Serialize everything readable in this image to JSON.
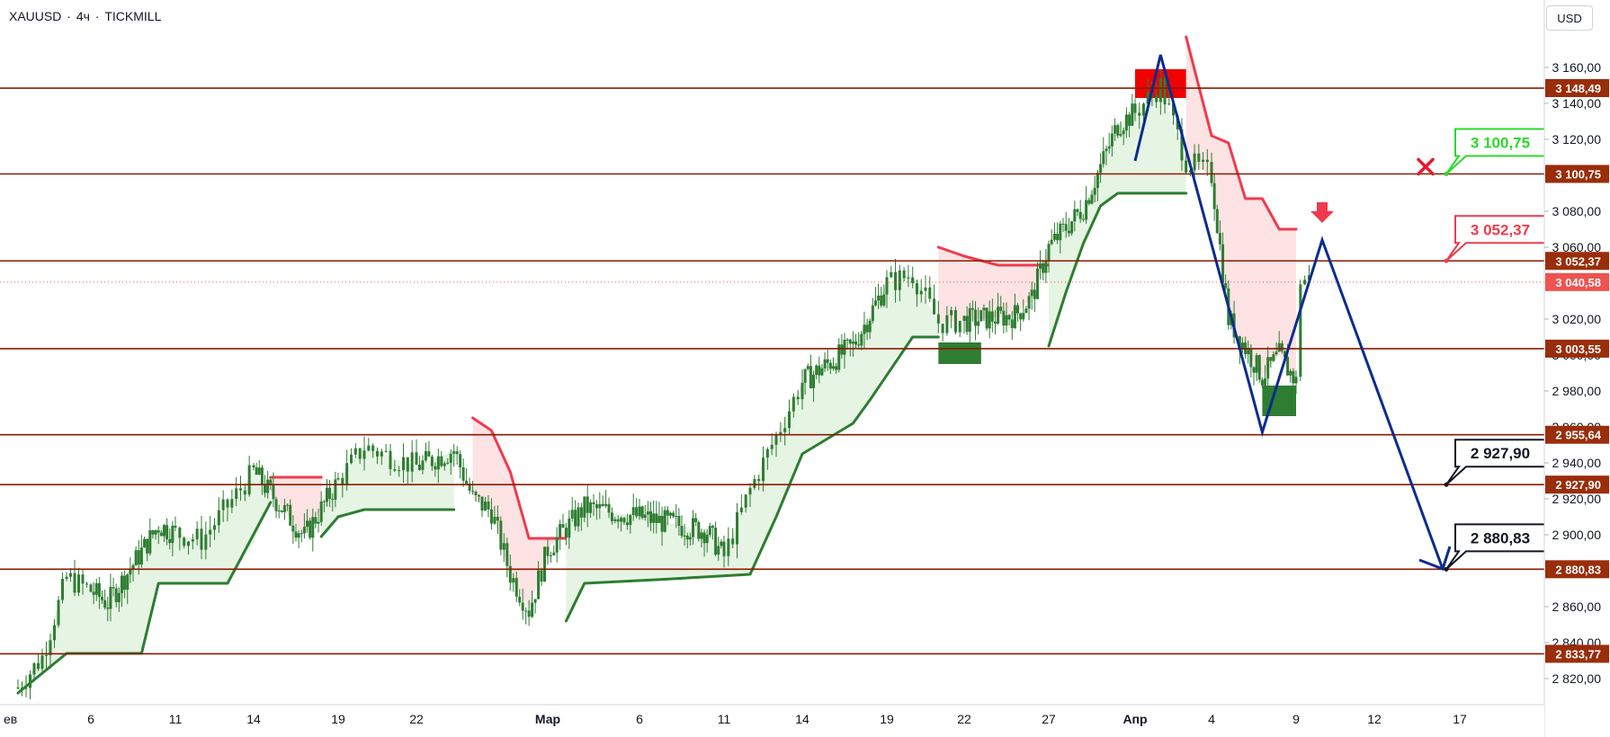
{
  "header": {
    "symbol": "XAUUSD",
    "separator": "·",
    "timeframe": "4ч",
    "broker": "TICKMILL",
    "currency": "USD"
  },
  "colors": {
    "level_line": "#8b1a00",
    "level_label_bg": "#9a2d0a",
    "candle": "#2e7d32",
    "stop_up": "#2e7d32",
    "stop_down": "#ef3b4e",
    "fill_up": "#e3f3e1",
    "fill_down": "#fde0e0",
    "projection": "#0d2c8f",
    "last_price_bg": "#ef5350",
    "callout_green": "#2bd92b",
    "callout_red": "#ef3b4e",
    "callout_black": "#131722",
    "sell_arrow": "#ef3b4e",
    "cross": "#e8182c"
  },
  "chart_data": {
    "type": "candlestick",
    "title": "XAUUSD · 4ч · TICKMILL",
    "x_ticks": [
      "ев",
      "6",
      "11",
      "14",
      "19",
      "22",
      "Мар",
      "6",
      "11",
      "14",
      "19",
      "22",
      "27",
      "Апр",
      "4",
      "9",
      "12",
      "17"
    ],
    "y_ticks": [
      "2 820,00",
      "2 840,00",
      "2 860,00",
      "2 880,00",
      "2 900,00",
      "2 920,00",
      "2 940,00",
      "2 960,00",
      "2 980,00",
      "3 000,00",
      "3 020,00",
      "3 040,00",
      "3 060,00",
      "3 080,00",
      "3 100,00",
      "3 120,00",
      "3 140,00",
      "3 160,00"
    ],
    "ylim": [
      2811,
      3179
    ],
    "horizontal_levels": [
      3148.49,
      3100.75,
      3052.37,
      3003.55,
      2955.64,
      2927.9,
      2880.83,
      2833.77
    ],
    "level_labels": [
      "3 148,49",
      "3 100,75",
      "3 052,37",
      "3 003,55",
      "2 955,64",
      "2 927,90",
      "2 880,83",
      "2 833,77"
    ],
    "last_price": 3040.58,
    "last_price_label": "3 040,58",
    "close_path": [
      [
        "Feb 3",
        2815
      ],
      [
        "Feb 4",
        2832
      ],
      [
        "Feb 5",
        2876
      ],
      [
        "Feb 7",
        2862
      ],
      [
        "Feb 10",
        2905
      ],
      [
        "Feb 12",
        2897
      ],
      [
        "Feb 14",
        2935
      ],
      [
        "Feb 17",
        2899
      ],
      [
        "Feb 19",
        2930
      ],
      [
        "Feb 20",
        2949
      ],
      [
        "Feb 22",
        2938
      ],
      [
        "Feb 24",
        2947
      ],
      [
        "Feb 25",
        2920
      ],
      [
        "Feb 26",
        2913
      ],
      [
        "Feb 27",
        2878
      ],
      [
        "Feb 28",
        2858
      ],
      [
        "Mar 1",
        2892
      ],
      [
        "Mar 3",
        2915
      ],
      [
        "Mar 6",
        2910
      ],
      [
        "Mar 10",
        2902
      ],
      [
        "Mar 11",
        2888
      ],
      [
        "Mar 12",
        2925
      ],
      [
        "Mar 13",
        2955
      ],
      [
        "Mar 14",
        2985
      ],
      [
        "Mar 17",
        3005
      ],
      [
        "Mar 19",
        3040
      ],
      [
        "Mar 20",
        3045
      ],
      [
        "Mar 21",
        3018
      ],
      [
        "Mar 23",
        3020
      ],
      [
        "Mar 25",
        3022
      ],
      [
        "Mar 26",
        3032
      ],
      [
        "Mar 27",
        3060
      ],
      [
        "Mar 29",
        3082
      ],
      [
        "Mar 31",
        3128
      ],
      [
        "Apr 1",
        3135
      ],
      [
        "Apr 2",
        3150
      ],
      [
        "Apr 3",
        3108
      ],
      [
        "Apr 4",
        3100
      ],
      [
        "Apr 5",
        3020
      ],
      [
        "Apr 7",
        2988
      ],
      [
        "Apr 8",
        3000
      ],
      [
        "Apr 9",
        2985
      ],
      [
        "Apr 9",
        3042
      ]
    ],
    "trailing_stop": [
      {
        "direction": "up",
        "points": [
          [
            "Feb 3",
            2812
          ],
          [
            "Feb 5",
            2834
          ],
          [
            "Feb 9",
            2834
          ],
          [
            "Feb 10",
            2873
          ],
          [
            "Feb 13",
            2873
          ],
          [
            "Feb 15",
            2918
          ]
        ]
      },
      {
        "direction": "down",
        "points": [
          [
            "Feb 15",
            2932
          ],
          [
            "Feb 18",
            2932
          ]
        ]
      },
      {
        "direction": "up",
        "points": [
          [
            "Feb 18",
            2899
          ],
          [
            "Feb 19",
            2910
          ],
          [
            "Feb 20",
            2914
          ],
          [
            "Feb 24",
            2914
          ]
        ]
      },
      {
        "direction": "down",
        "points": [
          [
            "Feb 25",
            2965
          ],
          [
            "Feb 26",
            2958
          ],
          [
            "Feb 27",
            2935
          ],
          [
            "Feb 28",
            2898
          ],
          [
            "Mar 2",
            2898
          ]
        ]
      },
      {
        "direction": "up",
        "points": [
          [
            "Mar 2",
            2852
          ],
          [
            "Mar 3",
            2873
          ],
          [
            "Mar 7",
            2875
          ],
          [
            "Mar 12",
            2878
          ],
          [
            "Mar 13",
            2910
          ],
          [
            "Mar 14",
            2945
          ],
          [
            "Mar 17",
            2962
          ],
          [
            "Mar 18",
            2975
          ],
          [
            "Mar 20",
            3010
          ],
          [
            "Mar 21",
            3010
          ]
        ]
      },
      {
        "direction": "down",
        "points": [
          [
            "Mar 21",
            3060
          ],
          [
            "Mar 22",
            3055
          ],
          [
            "Mar 24",
            3050
          ],
          [
            "Mar 27",
            3050
          ]
        ]
      },
      {
        "direction": "up",
        "points": [
          [
            "Mar 27",
            3005
          ],
          [
            "Mar 28",
            3035
          ],
          [
            "Mar 29",
            3062
          ],
          [
            "Mar 30",
            3083
          ],
          [
            "Mar 31",
            3090
          ],
          [
            "Apr 3",
            3090
          ]
        ]
      },
      {
        "direction": "down",
        "points": [
          [
            "Apr 3",
            3177
          ],
          [
            "Apr 4",
            3122
          ],
          [
            "Apr 5",
            3118
          ],
          [
            "Apr 6",
            3087
          ],
          [
            "Apr 7",
            3087
          ],
          [
            "Apr 8",
            3070
          ],
          [
            "Apr 9",
            3070
          ]
        ]
      }
    ],
    "zones": [
      {
        "color": "red",
        "from": "Apr 1",
        "to": "Apr 3",
        "high": 3159,
        "low": 3143
      },
      {
        "color": "green",
        "from": "Mar 21",
        "to": "Mar 23",
        "high": 3007,
        "low": 2995
      },
      {
        "color": "green",
        "from": "Apr 7",
        "to": "Apr 9",
        "high": 2983,
        "low": 2966
      }
    ],
    "projection_path": [
      [
        "Apr 1",
        3108
      ],
      [
        "Apr 2",
        3167
      ],
      [
        "Apr 7",
        2957
      ],
      [
        "Apr 10",
        3064
      ],
      [
        "Apr 16",
        2881
      ]
    ],
    "callouts": [
      {
        "label": "3 100,75",
        "color": "green"
      },
      {
        "label": "3 052,37",
        "color": "red"
      },
      {
        "label": "2 927,90",
        "color": "black"
      },
      {
        "label": "2 880,83",
        "color": "black"
      }
    ],
    "markers": [
      {
        "type": "cross",
        "value": 3100.75
      },
      {
        "type": "sell-arrow",
        "value": 3072
      }
    ]
  }
}
